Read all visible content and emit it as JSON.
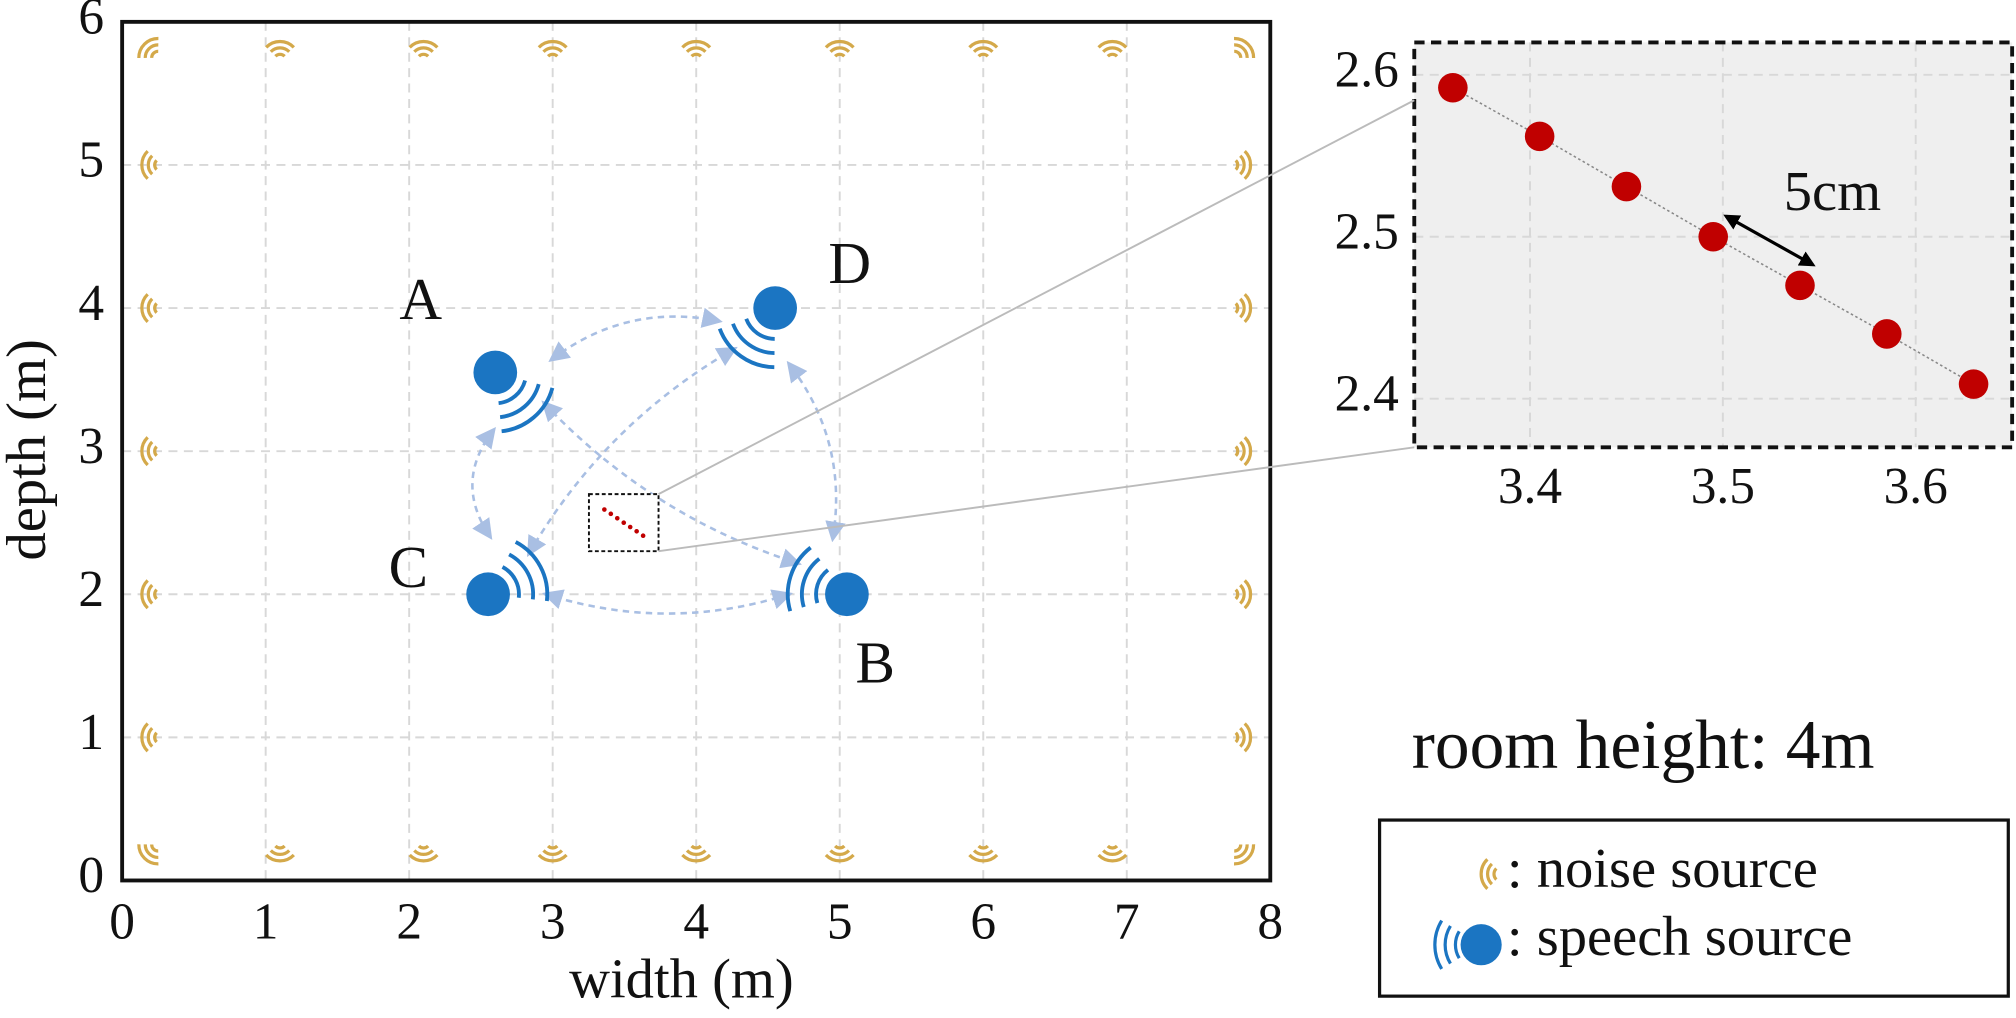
{
  "chart_data": [
    {
      "type": "scatter",
      "xlabel": "width (m)",
      "ylabel": "depth (m)",
      "xlim": [
        0,
        8
      ],
      "ylim": [
        0,
        6
      ],
      "xticks": [
        0,
        1,
        2,
        3,
        4,
        5,
        6,
        7,
        8
      ],
      "yticks": [
        0,
        1,
        2,
        3,
        4,
        5,
        6
      ],
      "grid": true,
      "series": [
        {
          "name": ": noise source",
          "color": "#d4a94a",
          "x": [
            0.2,
            1.1,
            2.1,
            3.0,
            4.0,
            5.0,
            6.0,
            6.9,
            7.8,
            0.2,
            1.1,
            2.1,
            3.0,
            4.0,
            5.0,
            6.0,
            6.9,
            7.8,
            0.2,
            0.2,
            0.2,
            0.2,
            0.2,
            7.8,
            7.8,
            7.8,
            7.8,
            7.8
          ],
          "y": [
            5.8,
            5.8,
            5.8,
            5.8,
            5.8,
            5.8,
            5.8,
            5.8,
            5.8,
            0.2,
            0.2,
            0.2,
            0.2,
            0.2,
            0.2,
            0.2,
            0.2,
            0.2,
            1,
            2,
            3,
            4,
            5,
            1,
            2,
            3,
            4,
            5
          ]
        },
        {
          "name": ": speech source",
          "color": "#1b75c2",
          "x": [
            2.6,
            5.05,
            2.55,
            4.55
          ],
          "y": [
            3.55,
            2.0,
            2.0,
            4.0
          ],
          "labels": [
            "A",
            "B",
            "C",
            "D"
          ]
        }
      ],
      "annotations": [
        "room height: 4m"
      ]
    },
    {
      "type": "scatter",
      "xlim": [
        3.34,
        3.65
      ],
      "ylim": [
        2.37,
        2.62
      ],
      "xticks": [
        3.4,
        3.5,
        3.6
      ],
      "yticks": [
        2.4,
        2.5,
        2.6
      ],
      "grid": true,
      "series": [
        {
          "color": "#c00000",
          "x": [
            3.36,
            3.405,
            3.45,
            3.495,
            3.54,
            3.585,
            3.63
          ],
          "y": [
            2.592,
            2.562,
            2.531,
            2.5,
            2.47,
            2.44,
            2.409
          ]
        }
      ],
      "annotations": [
        "5cm"
      ]
    }
  ]
}
